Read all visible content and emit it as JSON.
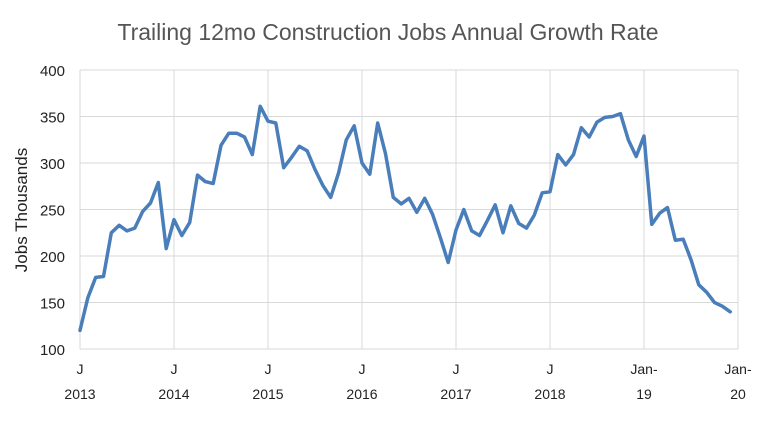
{
  "chart_data": {
    "type": "line",
    "title": "Trailing 12mo Construction Jobs Annual Growth Rate",
    "ylabel": "Jobs Thousands",
    "xlabel": "",
    "ylim": [
      100,
      400
    ],
    "yticks": [
      100,
      150,
      200,
      250,
      300,
      350,
      400
    ],
    "grid": true,
    "colors": {
      "line": "#4a7ebb",
      "grid": "#d9d9d9"
    },
    "xtick_labels": [
      {
        "line1": "J",
        "line2": "2013"
      },
      {
        "line1": "J",
        "line2": "2014"
      },
      {
        "line1": "J",
        "line2": "2015"
      },
      {
        "line1": "J",
        "line2": "2016"
      },
      {
        "line1": "J",
        "line2": "2017"
      },
      {
        "line1": "J",
        "line2": "2018"
      },
      {
        "line1": "Jan-",
        "line2": "19"
      },
      {
        "line1": "Jan-",
        "line2": "20"
      }
    ],
    "x_start": "2013-01",
    "x_end": "2020-01",
    "series": [
      {
        "x_frequency": "monthly",
        "x_first": "2013-01",
        "values": [
          120,
          155,
          177,
          178,
          225,
          233,
          227,
          230,
          248,
          257,
          279,
          208,
          239,
          222,
          236,
          287,
          280,
          278,
          319,
          332,
          332,
          328,
          309,
          361,
          345,
          343,
          295,
          306,
          318,
          313,
          293,
          276,
          263,
          289,
          325,
          340,
          300,
          288,
          343,
          310,
          263,
          256,
          262,
          247,
          262,
          245,
          220,
          193,
          228,
          250,
          227,
          222,
          238,
          255,
          225,
          254,
          235,
          230,
          244,
          268,
          269,
          309,
          298,
          309,
          338,
          328,
          344,
          349,
          350,
          353,
          325,
          307,
          329,
          234,
          246,
          252,
          217,
          218,
          196,
          169,
          161,
          150,
          146,
          140
        ]
      }
    ]
  }
}
